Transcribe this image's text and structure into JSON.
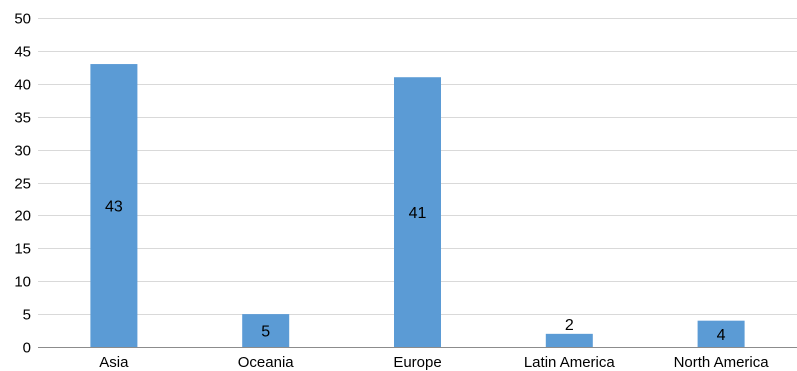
{
  "chart_data": {
    "type": "bar",
    "title": "",
    "xlabel": "",
    "ylabel": "",
    "categories": [
      "Asia",
      "Oceania",
      "Europe",
      "Latin America",
      "North America"
    ],
    "values": [
      43,
      5,
      41,
      2,
      4
    ],
    "data_labels": [
      "43",
      "5",
      "41",
      "2",
      "4"
    ],
    "ylim": [
      0,
      50
    ],
    "yticks": [
      0,
      5,
      10,
      15,
      20,
      25,
      30,
      35,
      40,
      45,
      50
    ],
    "ytick_labels": [
      "0",
      "5",
      "10",
      "15",
      "20",
      "25",
      "30",
      "35",
      "40",
      "45",
      "50"
    ],
    "grid": true,
    "legend": "none",
    "bar_color": "#5b9bd5"
  }
}
